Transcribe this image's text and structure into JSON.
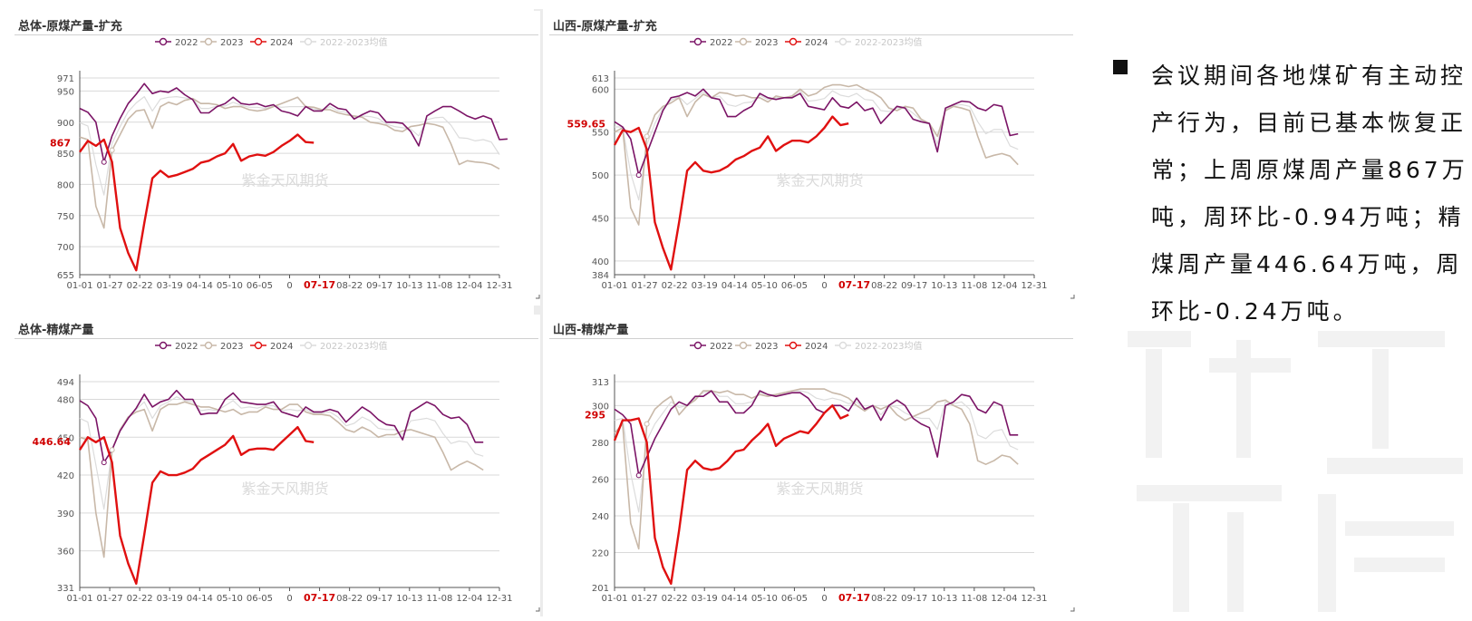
{
  "colors": {
    "c2022": "#7b1466",
    "c2023": "#c8b8a8",
    "c2024": "#e01010",
    "cavg": "#dcdcdc",
    "grid": "#d9d9d9",
    "axis": "#555555",
    "label": "#d00000"
  },
  "watermark_text": "紫金天风期货",
  "note": {
    "text": "会议期间各地煤矿有主动控产行为，目前已基本恢复正常；上周原煤周产量867万吨，周环比-0.94万吨；精煤周产量446.64万吨，周环比-0.24万吨。"
  },
  "chart_data": [
    {
      "title": "总体-原煤产量-扩充",
      "type": "line",
      "legend": [
        "2022",
        "2023",
        "2024",
        "2022-2023均值"
      ],
      "x_ticks": [
        "01-01",
        "01-27",
        "02-22",
        "03-19",
        "04-14",
        "05-10",
        "06-05",
        "0",
        "07-17",
        "08-22",
        "09-17",
        "10-13",
        "11-08",
        "12-04",
        "12-31"
      ],
      "highlight_tick": "07-17",
      "ylim": [
        655,
        971
      ],
      "y_ticks": [
        655,
        700,
        750,
        800,
        850,
        900,
        950,
        971
      ],
      "current_label": "867",
      "current_value": 867,
      "series": [
        {
          "name": "2022",
          "values": [
            922,
            916,
            900,
            836,
            878,
            906,
            930,
            945,
            962,
            946,
            950,
            948,
            955,
            944,
            936,
            915,
            915,
            925,
            930,
            940,
            930,
            928,
            930,
            925,
            928,
            918,
            915,
            910,
            925,
            918,
            918,
            930,
            922,
            920,
            905,
            912,
            918,
            915,
            900,
            900,
            898,
            885,
            862,
            910,
            918,
            925,
            925,
            918,
            910,
            905,
            910,
            905,
            872,
            873
          ]
        },
        {
          "name": "2023",
          "values": [
            876,
            872,
            765,
            730,
            855,
            880,
            905,
            918,
            920,
            890,
            925,
            932,
            928,
            935,
            938,
            930,
            930,
            928,
            922,
            925,
            925,
            920,
            918,
            920,
            925,
            930,
            935,
            940,
            925,
            924,
            920,
            920,
            915,
            912,
            910,
            908,
            900,
            898,
            895,
            887,
            885,
            893,
            895,
            898,
            896,
            892,
            865,
            832,
            838,
            836,
            835,
            832,
            825
          ]
        },
        {
          "name": "2024",
          "values": [
            852,
            870,
            862,
            872,
            836,
            730,
            690,
            662,
            738,
            810,
            822,
            812,
            815,
            820,
            825,
            835,
            838,
            845,
            850,
            865,
            838,
            845,
            848,
            846,
            852,
            862,
            870,
            880,
            868,
            867
          ]
        },
        {
          "name": "2022-2023均值",
          "values": [
            899,
            894,
            832,
            783,
            866,
            893,
            917,
            931,
            941,
            918,
            937,
            940,
            941,
            939,
            937,
            922,
            922,
            926,
            926,
            932,
            927,
            924,
            924,
            922,
            926,
            924,
            925,
            925,
            925,
            921,
            919,
            925,
            918,
            916,
            907,
            910,
            909,
            906,
            897,
            893,
            891,
            889,
            878,
            904,
            907,
            908,
            895,
            875,
            874,
            870,
            872,
            868,
            848
          ]
        }
      ]
    },
    {
      "title": "山西-原煤产量-扩充",
      "type": "line",
      "legend": [
        "2022",
        "2023",
        "2024",
        "2022-2023均值"
      ],
      "x_ticks": [
        "01-01",
        "01-27",
        "02-22",
        "03-19",
        "04-14",
        "05-10",
        "06-05",
        "0",
        "07-17",
        "08-22",
        "09-17",
        "10-13",
        "11-08",
        "12-04",
        "12-31"
      ],
      "highlight_tick": "07-17",
      "ylim": [
        384,
        613
      ],
      "y_ticks": [
        384,
        400,
        450,
        500,
        550,
        600,
        613
      ],
      "current_label": "559.65",
      "current_value": 559.65,
      "series": [
        {
          "name": "2022",
          "values": [
            562,
            556,
            542,
            500,
            525,
            550,
            575,
            590,
            592,
            596,
            592,
            600,
            590,
            588,
            568,
            568,
            575,
            580,
            595,
            590,
            588,
            590,
            590,
            595,
            580,
            578,
            576,
            590,
            580,
            578,
            585,
            575,
            578,
            560,
            570,
            580,
            578,
            565,
            562,
            560,
            527,
            578,
            582,
            586,
            585,
            578,
            575,
            582,
            580,
            546,
            548
          ]
        },
        {
          "name": "2023",
          "values": [
            550,
            555,
            462,
            442,
            545,
            570,
            580,
            584,
            590,
            568,
            585,
            594,
            590,
            596,
            595,
            592,
            593,
            590,
            590,
            585,
            592,
            590,
            592,
            600,
            592,
            595,
            602,
            605,
            605,
            603,
            605,
            600,
            596,
            590,
            578,
            575,
            580,
            578,
            565,
            560,
            545,
            575,
            580,
            578,
            575,
            545,
            520,
            523,
            525,
            522,
            512
          ]
        },
        {
          "name": "2024",
          "values": [
            535,
            552,
            550,
            555,
            530,
            445,
            415,
            390,
            445,
            505,
            515,
            505,
            503,
            505,
            510,
            518,
            522,
            528,
            532,
            545,
            528,
            535,
            540,
            540,
            538,
            545,
            555,
            568,
            558,
            560
          ]
        },
        {
          "name": "2022-2023均值",
          "values": [
            556,
            556,
            502,
            471,
            535,
            560,
            578,
            587,
            591,
            582,
            589,
            597,
            590,
            592,
            582,
            580,
            584,
            585,
            593,
            588,
            590,
            590,
            591,
            598,
            586,
            587,
            589,
            598,
            593,
            591,
            595,
            588,
            587,
            575,
            574,
            578,
            579,
            572,
            564,
            560,
            536,
            577,
            581,
            582,
            580,
            562,
            548,
            553,
            553,
            534,
            530
          ]
        }
      ]
    },
    {
      "title": "总体-精煤产量",
      "type": "line",
      "legend": [
        "2022",
        "2023",
        "2024",
        "2022-2023均值"
      ],
      "x_ticks": [
        "01-01",
        "01-27",
        "02-22",
        "03-19",
        "04-14",
        "05-10",
        "06-05",
        "0",
        "07-17",
        "08-22",
        "09-17",
        "10-13",
        "11-08",
        "12-04",
        "12-31"
      ],
      "highlight_tick": "07-17",
      "ylim": [
        331,
        494
      ],
      "y_ticks": [
        331,
        360,
        390,
        420,
        450,
        480,
        494
      ],
      "current_label": "446.64",
      "current_value": 446.64,
      "series": [
        {
          "name": "2022",
          "values": [
            479,
            475,
            465,
            430,
            440,
            455,
            465,
            473,
            484,
            474,
            478,
            480,
            487,
            480,
            480,
            468,
            469,
            469,
            480,
            485,
            478,
            477,
            476,
            476,
            478,
            470,
            468,
            466,
            474,
            470,
            470,
            472,
            470,
            462,
            468,
            474,
            470,
            464,
            460,
            459,
            448,
            470,
            474,
            478,
            475,
            468,
            465,
            466,
            460,
            446,
            446
          ]
        },
        {
          "name": "2023",
          "values": [
            450,
            448,
            390,
            355,
            440,
            456,
            466,
            470,
            472,
            455,
            472,
            476,
            476,
            478,
            476,
            474,
            474,
            472,
            470,
            472,
            468,
            470,
            470,
            474,
            472,
            472,
            476,
            476,
            470,
            468,
            468,
            467,
            462,
            456,
            454,
            458,
            455,
            450,
            452,
            452,
            455,
            456,
            454,
            452,
            450,
            438,
            424,
            428,
            431,
            428,
            424
          ]
        },
        {
          "name": "2024",
          "values": [
            440,
            450,
            446,
            450,
            430,
            372,
            350,
            334,
            373,
            414,
            423,
            420,
            420,
            422,
            425,
            432,
            436,
            440,
            444,
            451,
            436,
            440,
            441,
            441,
            440,
            446,
            452,
            458,
            447,
            446
          ]
        },
        {
          "name": "2022-2023均值",
          "values": [
            465,
            462,
            428,
            393,
            440,
            456,
            466,
            472,
            478,
            465,
            475,
            478,
            482,
            479,
            478,
            471,
            472,
            471,
            475,
            479,
            473,
            474,
            473,
            475,
            475,
            471,
            472,
            471,
            472,
            469,
            469,
            470,
            466,
            459,
            461,
            466,
            463,
            457,
            456,
            456,
            452,
            463,
            464,
            465,
            463,
            453,
            445,
            447,
            446,
            437,
            435
          ]
        }
      ]
    },
    {
      "title": "山西-精煤产量",
      "type": "line",
      "legend": [
        "2022",
        "2023",
        "2024",
        "2022-2023均值"
      ],
      "x_ticks": [
        "01-01",
        "01-27",
        "02-22",
        "03-19",
        "04-14",
        "05-10",
        "06-05",
        "0",
        "07-17",
        "08-22",
        "09-17",
        "10-13",
        "11-08",
        "12-04",
        "12-31"
      ],
      "highlight_tick": "07-17",
      "ylim": [
        201,
        313
      ],
      "y_ticks": [
        201,
        220,
        240,
        260,
        280,
        300,
        313
      ],
      "current_label": "295",
      "current_value": 295,
      "series": [
        {
          "name": "2022",
          "values": [
            298,
            295,
            290,
            262,
            272,
            282,
            290,
            298,
            302,
            300,
            305,
            305,
            308,
            302,
            302,
            296,
            296,
            300,
            308,
            306,
            305,
            306,
            307,
            307,
            304,
            298,
            296,
            300,
            300,
            297,
            304,
            298,
            300,
            292,
            300,
            303,
            300,
            293,
            290,
            288,
            272,
            300,
            302,
            306,
            305,
            298,
            296,
            302,
            300,
            284,
            284
          ]
        },
        {
          "name": "2023",
          "values": [
            285,
            290,
            236,
            222,
            290,
            298,
            302,
            305,
            295,
            300,
            303,
            308,
            308,
            307,
            308,
            306,
            306,
            304,
            306,
            305,
            306,
            307,
            308,
            309,
            309,
            309,
            309,
            307,
            306,
            304,
            300,
            297,
            300,
            298,
            300,
            295,
            292,
            294,
            296,
            298,
            302,
            303,
            300,
            298,
            290,
            270,
            268,
            270,
            273,
            272,
            268
          ]
        },
        {
          "name": "2024",
          "values": [
            281,
            292,
            292,
            293,
            280,
            228,
            212,
            203,
            232,
            265,
            270,
            266,
            265,
            266,
            270,
            275,
            276,
            281,
            285,
            290,
            278,
            282,
            284,
            286,
            285,
            290,
            296,
            300,
            293,
            295
          ]
        },
        {
          "name": "2022-2023均值",
          "values": [
            292,
            293,
            263,
            242,
            281,
            290,
            296,
            302,
            299,
            300,
            304,
            307,
            308,
            305,
            305,
            301,
            301,
            302,
            307,
            306,
            306,
            307,
            308,
            308,
            307,
            304,
            303,
            304,
            303,
            301,
            302,
            298,
            300,
            295,
            300,
            299,
            296,
            294,
            293,
            293,
            287,
            302,
            301,
            302,
            298,
            284,
            282,
            286,
            287,
            278,
            276
          ]
        }
      ]
    }
  ]
}
